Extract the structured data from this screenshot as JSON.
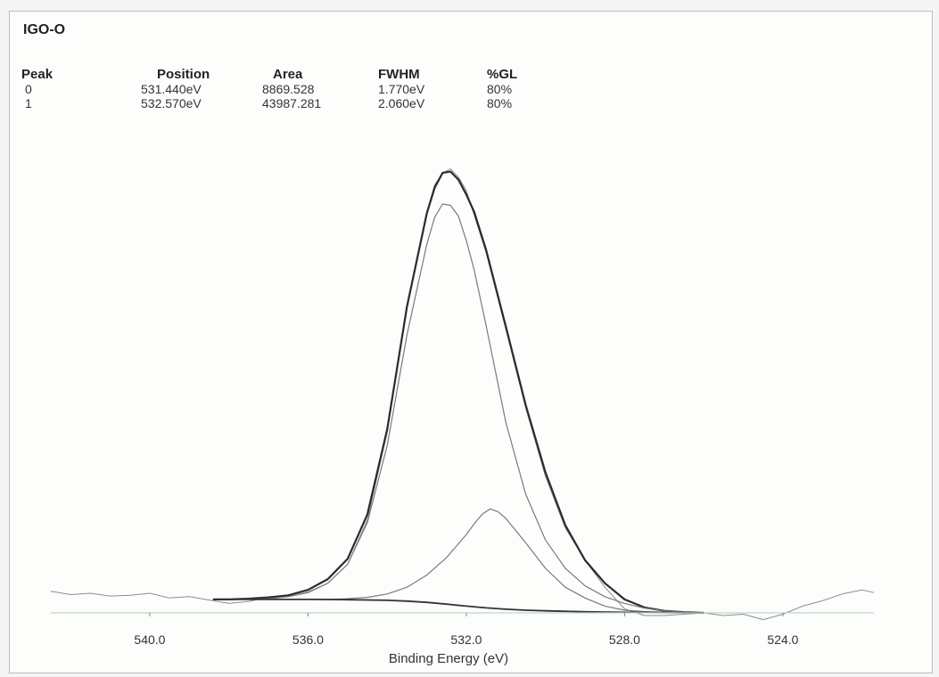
{
  "chart_data": {
    "type": "line",
    "title": "IGO-O",
    "xlabel": "Binding Energy (eV)",
    "ylabel": "",
    "xlim": [
      542.5,
      521.7
    ],
    "x_reversed": true,
    "x_ticks": [
      540.0,
      536.0,
      532.0,
      528.0,
      524.0
    ],
    "x_tick_labels": [
      "540.0",
      "536.0",
      "532.0",
      "528.0",
      "524.0"
    ],
    "grid": false,
    "peak_table": {
      "headers": [
        "Peak",
        "Position",
        "Area",
        "FWHM",
        "%GL"
      ],
      "rows": [
        [
          "0",
          "531.440eV",
          "8869.528",
          "1.770eV",
          "80%"
        ],
        [
          "1",
          "532.570eV",
          "43987.281",
          "2.060eV",
          "80%"
        ]
      ]
    },
    "baseline_y": 0.0,
    "fit_range": [
      538.4,
      526.0
    ],
    "series": [
      {
        "role": "raw",
        "x": [
          542.5,
          542.0,
          541.5,
          541.0,
          540.5,
          540.0,
          539.5,
          539.0,
          538.5,
          538.0,
          537.5,
          537.0,
          536.5,
          536.0,
          535.5,
          535.0,
          534.5,
          534.0,
          533.5,
          533.0,
          532.8,
          532.6,
          532.4,
          532.2,
          532.0,
          531.5,
          531.0,
          530.5,
          530.0,
          529.5,
          529.0,
          528.5,
          528.0,
          527.5,
          527.0,
          526.5,
          526.0,
          525.5,
          525.0,
          524.5,
          524.0,
          523.5,
          523.0,
          522.5,
          522.0,
          521.7
        ],
        "y": [
          1.6,
          1.35,
          1.45,
          1.25,
          1.3,
          1.45,
          1.1,
          1.2,
          0.95,
          0.7,
          0.85,
          1.15,
          1.2,
          1.55,
          2.2,
          3.6,
          6.9,
          13.4,
          22.6,
          29.7,
          31.7,
          32.6,
          32.9,
          32.3,
          31.3,
          26.7,
          21.0,
          15.2,
          10.1,
          6.3,
          3.9,
          1.9,
          0.3,
          -0.2,
          -0.2,
          -0.1,
          0.0,
          -0.2,
          -0.1,
          -0.5,
          -0.1,
          0.5,
          0.9,
          1.4,
          1.7,
          1.5
        ]
      },
      {
        "role": "envelope",
        "x": [
          538.4,
          538.0,
          537.5,
          537.0,
          536.5,
          536.0,
          535.5,
          535.0,
          534.5,
          534.0,
          533.5,
          533.0,
          532.8,
          532.6,
          532.4,
          532.2,
          532.0,
          531.8,
          531.5,
          531.0,
          530.5,
          530.0,
          529.5,
          529.0,
          528.5,
          528.0,
          527.5,
          527.0,
          526.5,
          526.0
        ],
        "y": [
          1.0,
          1.0,
          1.05,
          1.15,
          1.3,
          1.7,
          2.5,
          4.0,
          7.3,
          13.6,
          22.7,
          29.6,
          31.5,
          32.6,
          32.7,
          32.1,
          31.0,
          29.7,
          26.9,
          21.2,
          15.4,
          10.4,
          6.5,
          3.9,
          2.2,
          1.0,
          0.4,
          0.15,
          0.05,
          0.0
        ]
      },
      {
        "role": "component-1",
        "x": [
          538.4,
          537.5,
          537.0,
          536.5,
          536.0,
          535.5,
          535.0,
          534.5,
          534.0,
          533.5,
          533.0,
          532.8,
          532.6,
          532.4,
          532.2,
          532.0,
          531.8,
          531.5,
          531.0,
          530.5,
          530.0,
          529.5,
          529.0,
          528.5,
          528.0,
          527.5,
          527.0,
          526.5,
          526.0
        ],
        "y": [
          1.0,
          1.0,
          1.05,
          1.2,
          1.5,
          2.2,
          3.6,
          6.7,
          12.4,
          20.6,
          27.3,
          29.3,
          30.3,
          30.2,
          29.4,
          27.6,
          25.4,
          21.3,
          14.1,
          8.8,
          5.4,
          3.3,
          2.0,
          1.2,
          0.7,
          0.35,
          0.15,
          0.05,
          0.0
        ]
      },
      {
        "role": "component-0",
        "x": [
          538.4,
          537.0,
          536.0,
          535.5,
          535.0,
          534.5,
          534.0,
          533.5,
          533.0,
          532.5,
          532.0,
          531.8,
          531.6,
          531.4,
          531.2,
          531.0,
          530.5,
          530.0,
          529.5,
          529.0,
          528.5,
          528.0,
          527.5,
          527.0,
          526.5,
          526.0
        ],
        "y": [
          1.0,
          1.0,
          1.0,
          1.0,
          1.05,
          1.15,
          1.4,
          1.9,
          2.8,
          4.1,
          5.8,
          6.6,
          7.3,
          7.7,
          7.5,
          7.0,
          5.2,
          3.3,
          1.9,
          1.1,
          0.5,
          0.2,
          0.1,
          0.05,
          0.0,
          0.0
        ]
      },
      {
        "role": "background",
        "x": [
          538.4,
          537.0,
          536.0,
          535.0,
          534.0,
          533.5,
          533.0,
          532.5,
          532.0,
          531.5,
          531.0,
          530.5,
          530.0,
          529.0,
          528.0,
          527.0,
          526.0
        ],
        "y": [
          1.0,
          1.0,
          1.0,
          0.98,
          0.93,
          0.87,
          0.78,
          0.65,
          0.5,
          0.37,
          0.27,
          0.2,
          0.15,
          0.08,
          0.04,
          0.02,
          0.0
        ]
      }
    ],
    "colors": {
      "raw": "#8a8f8c",
      "envelope": "#2b2b2b",
      "component": "#7a7a7a",
      "background": "#333333",
      "baseline": "#b8d8c8",
      "tick_text": "#333333"
    }
  }
}
